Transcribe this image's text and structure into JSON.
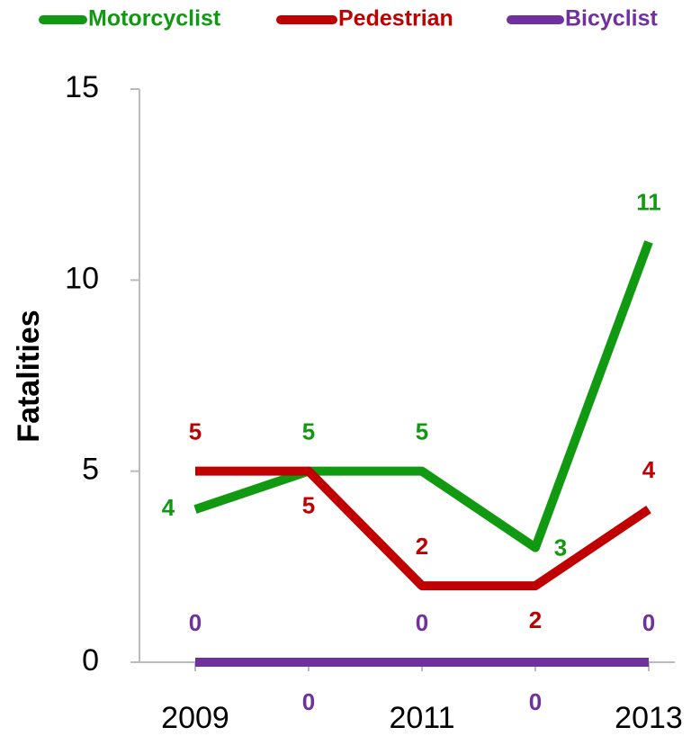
{
  "chart_data": {
    "type": "line",
    "ylabel": "Fatalities",
    "categories": [
      "2009",
      null,
      "2011",
      null,
      "2013"
    ],
    "series": [
      {
        "name": "Motorcyclist",
        "color": "#119911",
        "values": [
          4,
          5,
          5,
          3,
          11
        ]
      },
      {
        "name": "Pedestrian",
        "color": "#c00000",
        "values": [
          5,
          5,
          2,
          2,
          4
        ]
      },
      {
        "name": "Bicyclist",
        "color": "#7030a0",
        "values": [
          0,
          0,
          0,
          0,
          0
        ]
      }
    ],
    "ylim": [
      0,
      15
    ],
    "yticks": [
      0,
      5,
      10,
      15
    ],
    "grid": false
  }
}
